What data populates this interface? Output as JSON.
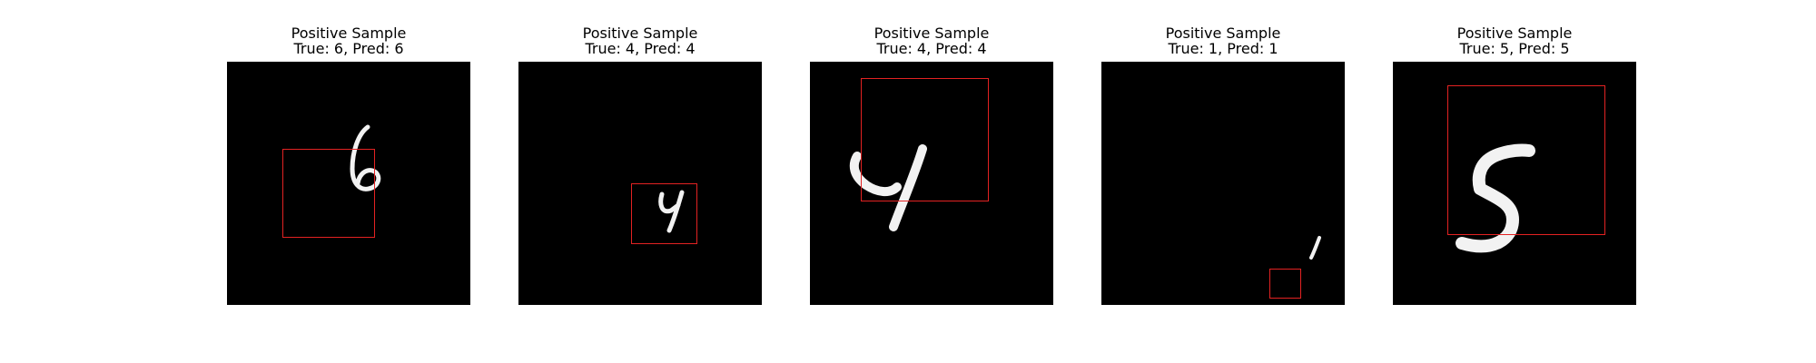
{
  "panels": [
    {
      "title": "Positive Sample",
      "label": "True: 6, Pred: 6",
      "digit_icon": "handwritten-digit-6-icon",
      "bbox_color": "#e32222"
    },
    {
      "title": "Positive Sample",
      "label": "True: 4, Pred: 4",
      "digit_icon": "handwritten-digit-4-icon",
      "bbox_color": "#e32222"
    },
    {
      "title": "Positive Sample",
      "label": "True: 4, Pred: 4",
      "digit_icon": "handwritten-digit-4-icon",
      "bbox_color": "#e32222"
    },
    {
      "title": "Positive Sample",
      "label": "True: 1, Pred: 1",
      "digit_icon": "handwritten-digit-1-icon",
      "bbox_color": "#e32222"
    },
    {
      "title": "Positive Sample",
      "label": "True: 5, Pred: 5",
      "digit_icon": "handwritten-digit-5-icon",
      "bbox_color": "#e32222"
    }
  ]
}
